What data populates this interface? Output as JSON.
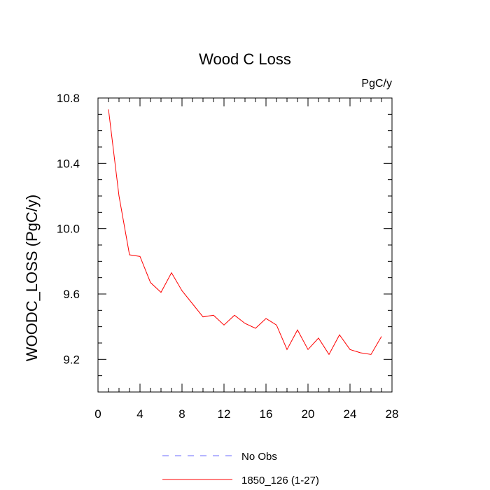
{
  "chart_data": {
    "type": "line",
    "title": "Wood C Loss",
    "units_label": "PgC/y",
    "ylabel": "WOODC_LOSS  (PgC/y)",
    "xlabel": "",
    "xlim": [
      0,
      28
    ],
    "ylim": [
      9.0,
      10.8
    ],
    "x_major_ticks": [
      0,
      4,
      8,
      12,
      16,
      20,
      24,
      28
    ],
    "x_minor_ticks": [
      1,
      2,
      3,
      5,
      6,
      7,
      9,
      10,
      11,
      13,
      14,
      15,
      17,
      18,
      19,
      21,
      22,
      23,
      25,
      26,
      27
    ],
    "y_major_ticks": [
      9.2,
      9.6,
      10.0,
      10.4,
      10.8
    ],
    "y_major_tick_labels": [
      "9.2",
      "9.6",
      "10.0",
      "10.4",
      "10.8"
    ],
    "y_minor_ticks": [
      9.0,
      9.1,
      9.3,
      9.4,
      9.5,
      9.7,
      9.8,
      9.9,
      10.1,
      10.2,
      10.3,
      10.5,
      10.6,
      10.7
    ],
    "grid": false,
    "legend_position": "bottom-center",
    "series": [
      {
        "name": "No Obs",
        "color": "#6b6bff",
        "dash": "dashed",
        "x": [],
        "values": []
      },
      {
        "name": "1850_126 (1-27)",
        "color": "#ff0000",
        "dash": "solid",
        "x": [
          1,
          2,
          3,
          4,
          5,
          6,
          7,
          8,
          9,
          10,
          11,
          12,
          13,
          14,
          15,
          16,
          17,
          18,
          19,
          20,
          21,
          22,
          23,
          24,
          25,
          26,
          27
        ],
        "values": [
          10.73,
          10.2,
          9.84,
          9.83,
          9.67,
          9.61,
          9.73,
          9.62,
          9.54,
          9.46,
          9.47,
          9.41,
          9.47,
          9.42,
          9.39,
          9.45,
          9.41,
          9.26,
          9.38,
          9.26,
          9.33,
          9.23,
          9.35,
          9.26,
          9.24,
          9.23,
          9.34
        ]
      }
    ]
  }
}
